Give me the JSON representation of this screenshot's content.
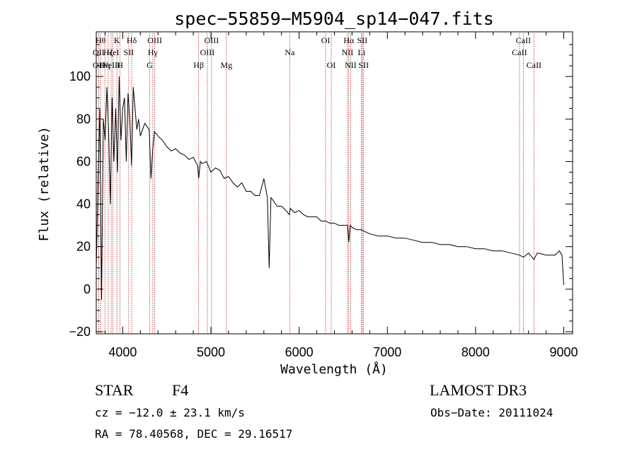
{
  "chart_data": {
    "type": "line",
    "title": "spec−55859−M5904_sp14−047.fits",
    "xlabel": "Wavelength (Å)",
    "ylabel": "Flux (relative)",
    "xlim": [
      3700,
      9100
    ],
    "ylim": [
      -21,
      121
    ],
    "xticks": [
      {
        "value": 4000,
        "label": "4000"
      },
      {
        "value": 5000,
        "label": "5000"
      },
      {
        "value": 6000,
        "label": "6000"
      },
      {
        "value": 7000,
        "label": "7000"
      },
      {
        "value": 8000,
        "label": "8000"
      },
      {
        "value": 9000,
        "label": "9000"
      }
    ],
    "yticks": [
      {
        "value": -20,
        "label": "−20"
      },
      {
        "value": 0,
        "label": "0"
      },
      {
        "value": 20,
        "label": "20"
      },
      {
        "value": 40,
        "label": "40"
      },
      {
        "value": 60,
        "label": "60"
      },
      {
        "value": 80,
        "label": "80"
      },
      {
        "value": 100,
        "label": "100"
      }
    ],
    "series": [
      {
        "name": "flux",
        "x": [
          3700,
          3720,
          3740,
          3760,
          3780,
          3800,
          3820,
          3840,
          3860,
          3880,
          3900,
          3920,
          3940,
          3960,
          3980,
          4000,
          4020,
          4040,
          4060,
          4080,
          4100,
          4120,
          4140,
          4160,
          4180,
          4200,
          4250,
          4300,
          4320,
          4340,
          4360,
          4400,
          4450,
          4500,
          4550,
          4600,
          4650,
          4700,
          4750,
          4800,
          4850,
          4861,
          4880,
          4900,
          4950,
          5000,
          5050,
          5100,
          5150,
          5200,
          5250,
          5300,
          5350,
          5400,
          5450,
          5500,
          5550,
          5600,
          5640,
          5660,
          5680,
          5700,
          5750,
          5800,
          5850,
          5890,
          5900,
          5950,
          6000,
          6050,
          6100,
          6150,
          6200,
          6250,
          6300,
          6350,
          6400,
          6450,
          6500,
          6550,
          6563,
          6580,
          6600,
          6650,
          6700,
          6750,
          6800,
          6900,
          7000,
          7100,
          7200,
          7300,
          7400,
          7500,
          7600,
          7700,
          7800,
          7900,
          8000,
          8100,
          8200,
          8300,
          8400,
          8498,
          8542,
          8600,
          8662,
          8700,
          8800,
          8900,
          8950,
          8980,
          9000
        ],
        "y": [
          10,
          50,
          85,
          -5,
          80,
          70,
          95,
          75,
          40,
          90,
          60,
          85,
          55,
          100,
          70,
          85,
          90,
          60,
          92,
          80,
          58,
          95,
          85,
          75,
          80,
          72,
          78,
          75,
          52,
          66,
          74,
          72,
          70,
          67,
          65,
          66,
          64,
          63,
          61,
          62,
          58,
          52,
          60,
          59,
          60,
          55,
          57,
          56,
          52,
          53,
          50,
          48,
          50,
          46,
          46,
          44,
          44,
          52,
          43,
          10,
          43,
          42,
          39,
          39,
          37,
          35,
          38,
          36,
          37,
          35,
          34,
          34,
          34,
          32,
          32,
          31,
          31,
          30,
          30,
          30,
          22,
          30,
          29,
          28,
          28,
          27,
          26,
          25,
          25,
          24,
          24,
          23,
          22,
          22,
          21,
          21,
          20,
          20,
          19,
          19,
          18,
          18,
          17,
          16,
          15,
          17,
          14,
          17,
          16,
          16,
          18,
          16,
          2
        ],
        "color": "#000000"
      }
    ],
    "spectral_lines": [
      {
        "x": 3727,
        "label": "OII",
        "row": 2
      },
      {
        "x": 3727,
        "label": "OII",
        "row": 3
      },
      {
        "x": 3750,
        "label": "Hθ",
        "row": 1
      },
      {
        "x": 3798,
        "label": "Hη",
        "row": 3
      },
      {
        "x": 3835,
        "label": "Hζ",
        "row": 2
      },
      {
        "x": 3869,
        "label": "NeIII",
        "row": 3
      },
      {
        "x": 3889,
        "label": "HeI",
        "row": 2
      },
      {
        "x": 3934,
        "label": "K",
        "row": 1
      },
      {
        "x": 3969,
        "label": "H",
        "row": 3
      },
      {
        "x": 4068,
        "label": "SII",
        "row": 2
      },
      {
        "x": 4102,
        "label": "Hδ",
        "row": 1
      },
      {
        "x": 4305,
        "label": "G",
        "row": 3
      },
      {
        "x": 4341,
        "label": "Hγ",
        "row": 2
      },
      {
        "x": 4363,
        "label": "OIII",
        "row": 1
      },
      {
        "x": 4861,
        "label": "Hβ",
        "row": 3
      },
      {
        "x": 4959,
        "label": "OIII",
        "row": 2
      },
      {
        "x": 5007,
        "label": "OIII",
        "row": 1
      },
      {
        "x": 5175,
        "label": "Mg",
        "row": 3
      },
      {
        "x": 5894,
        "label": "Na",
        "row": 2
      },
      {
        "x": 6300,
        "label": "OI",
        "row": 1
      },
      {
        "x": 6364,
        "label": "OI",
        "row": 3
      },
      {
        "x": 6548,
        "label": "NII",
        "row": 2
      },
      {
        "x": 6563,
        "label": "Hα",
        "row": 1
      },
      {
        "x": 6584,
        "label": "NII",
        "row": 3
      },
      {
        "x": 6708,
        "label": "Li",
        "row": 2
      },
      {
        "x": 6716,
        "label": "SII",
        "row": 1
      },
      {
        "x": 6731,
        "label": "SII",
        "row": 3
      },
      {
        "x": 8498,
        "label": "CaII",
        "row": 2
      },
      {
        "x": 8542,
        "label": "CaII",
        "row": 1
      },
      {
        "x": 8662,
        "label": "CaII",
        "row": 3
      }
    ]
  },
  "info": {
    "object_class": "STAR",
    "subclass": "F4",
    "survey": "LAMOST DR3",
    "redshift": "cz = −12.0 ± 23.1 km/s",
    "obs_date": "Obs−Date: 20111024",
    "coords": "RA =  78.40568, DEC =  29.16517"
  }
}
